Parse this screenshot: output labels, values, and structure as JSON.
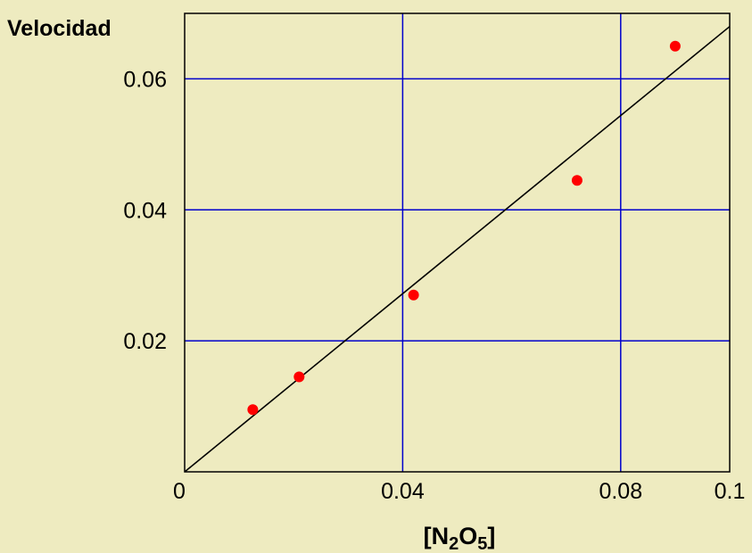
{
  "chart_data": {
    "type": "scatter",
    "title": "",
    "ylabel": "Velocidad",
    "xlabel": {
      "prefix": "[N",
      "sub1": "2",
      "mid": "O",
      "sub2": "5",
      "suffix": "]"
    },
    "xlim": [
      0,
      0.1
    ],
    "ylim": [
      0,
      0.07
    ],
    "x_ticks": [
      0.04,
      0.08
    ],
    "x_tick_labels": [
      "0",
      "0.04",
      "0.08",
      "0.1"
    ],
    "y_ticks": [
      0.02,
      0.04,
      0.06
    ],
    "y_tick_labels": [
      "0.02",
      "0.04",
      "0.06"
    ],
    "grid": true,
    "series": [
      {
        "points": [
          {
            "x": 0.0125,
            "y": 0.0095
          },
          {
            "x": 0.021,
            "y": 0.0145
          },
          {
            "x": 0.042,
            "y": 0.027
          },
          {
            "x": 0.072,
            "y": 0.0445
          },
          {
            "x": 0.09,
            "y": 0.065
          }
        ]
      }
    ],
    "fit_line": {
      "x": [
        0,
        0.1
      ],
      "y": [
        0,
        0.068
      ]
    },
    "colors": {
      "background": "#EEEBC0",
      "plot_background": "#EEEBC0",
      "grid": "#0000CC",
      "points": "#FF0000",
      "line": "#000000"
    }
  }
}
